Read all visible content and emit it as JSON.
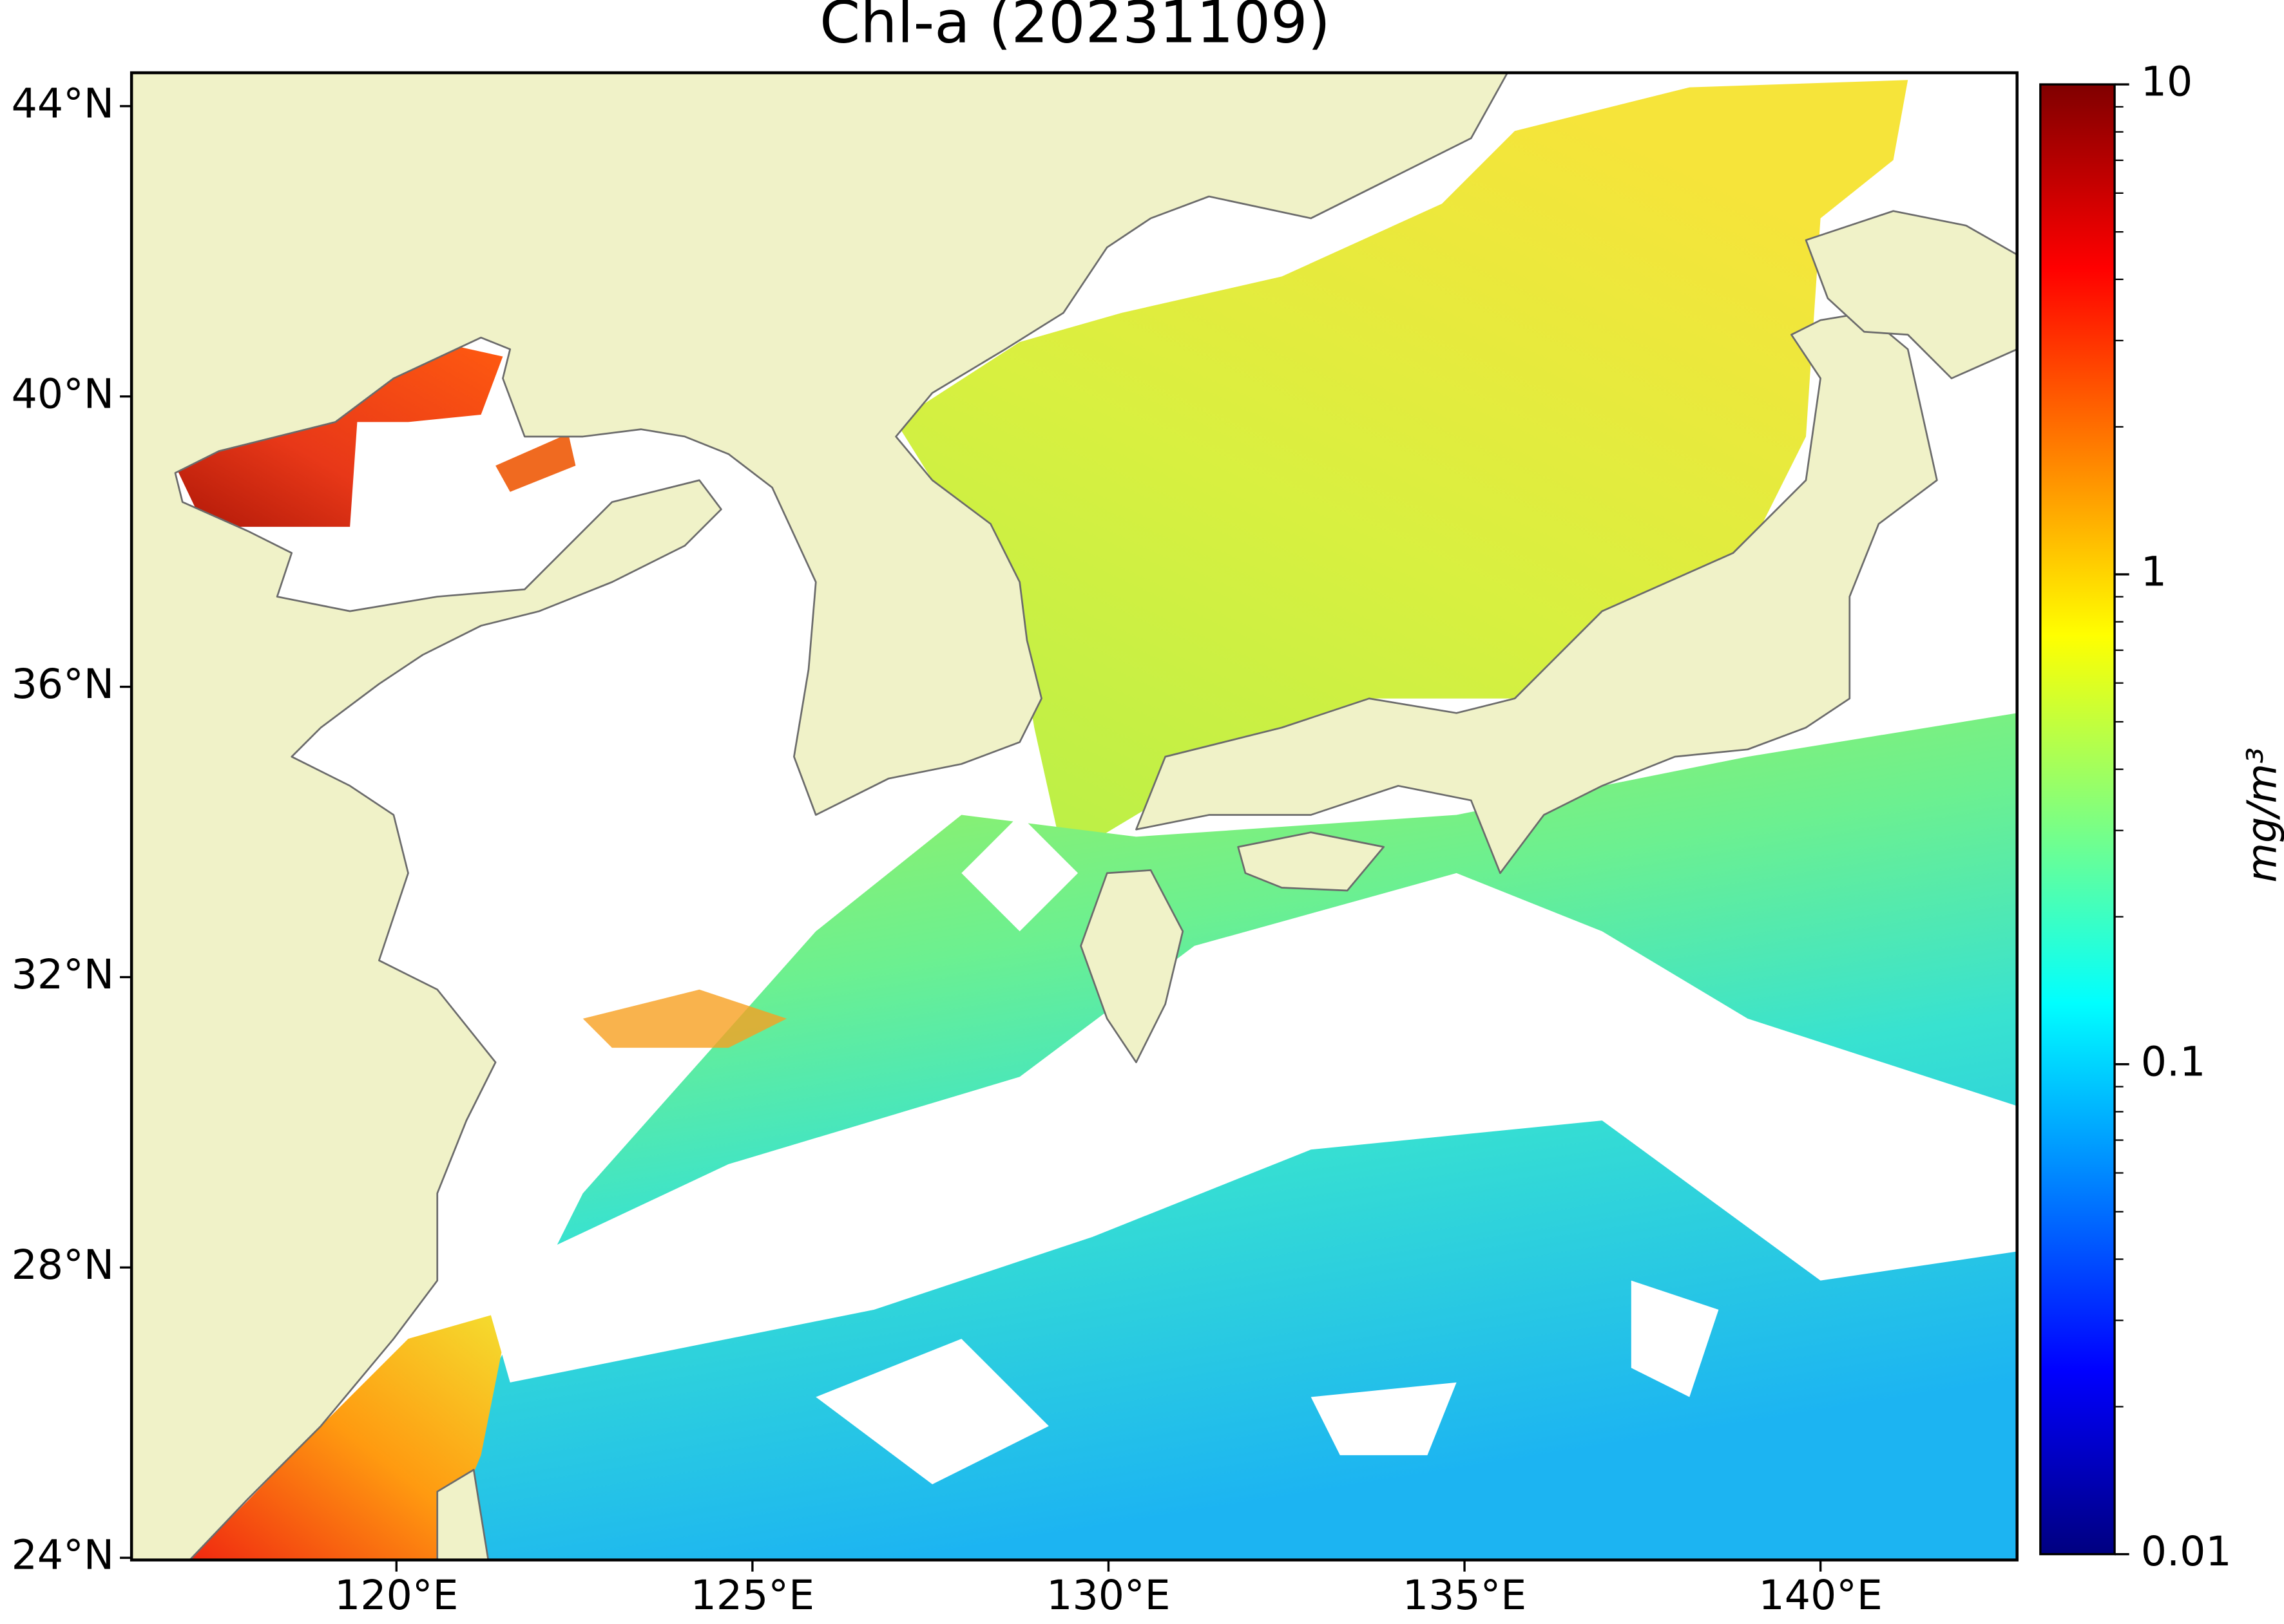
{
  "chart_data": {
    "type": "map",
    "title": "Chl-a (20231109)",
    "xlim": [
      116.28,
      142.76
    ],
    "ylim": [
      23.97,
      44.46
    ],
    "xticks": [
      {
        "value": 120,
        "label": "120°E"
      },
      {
        "value": 125,
        "label": "125°E"
      },
      {
        "value": 130,
        "label": "130°E"
      },
      {
        "value": 135,
        "label": "135°E"
      },
      {
        "value": 140,
        "label": "140°E"
      }
    ],
    "yticks": [
      {
        "value": 24,
        "label": "24°N"
      },
      {
        "value": 28,
        "label": "28°N"
      },
      {
        "value": 32,
        "label": "32°N"
      },
      {
        "value": 36,
        "label": "36°N"
      },
      {
        "value": 40,
        "label": "40°N"
      },
      {
        "value": 44,
        "label": "44°N"
      }
    ],
    "colorbar": {
      "label": "mg/m³",
      "scale": "log",
      "colormap": "jet",
      "lim": [
        0.01,
        10
      ],
      "ticks": [
        0.01,
        0.1,
        1,
        10
      ]
    }
  }
}
